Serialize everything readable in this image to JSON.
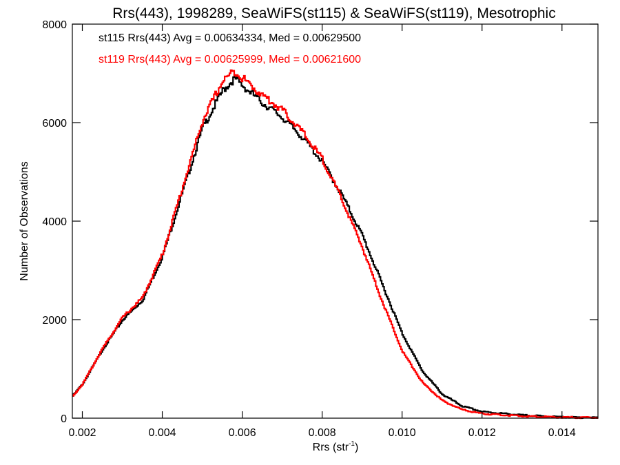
{
  "chart_data": {
    "type": "line",
    "style": "step-histogram",
    "title": "Rrs(443), 1998289, SeaWiFS(st115) & SeaWiFS(st119), Mesotrophic",
    "xlabel_base": "Rrs (str",
    "xlabel_sup": "-1",
    "xlabel_end": ")",
    "ylabel": "Number of Observations",
    "xlim": [
      0.00175,
      0.0149
    ],
    "ylim": [
      0,
      8000
    ],
    "xticks": [
      0.002,
      0.004,
      0.006,
      0.008,
      0.01,
      0.012,
      0.014
    ],
    "xtick_labels": [
      "0.002",
      "0.004",
      "0.006",
      "0.008",
      "0.010",
      "0.012",
      "0.014"
    ],
    "yticks": [
      0,
      2000,
      4000,
      6000,
      8000
    ],
    "ytick_labels": [
      "0",
      "2000",
      "4000",
      "6000",
      "8000"
    ],
    "legend": [
      {
        "text": "st115 Rrs(443) Avg = 0.00634334, Med = 0.00629500",
        "color": "#000000"
      },
      {
        "text": "st119 Rrs(443) Avg = 0.00625999, Med = 0.00621600",
        "color": "#ff0000"
      }
    ],
    "series": [
      {
        "name": "st115",
        "color": "#000000",
        "x": [
          0.00175,
          0.002,
          0.0025,
          0.003,
          0.0035,
          0.004,
          0.0045,
          0.005,
          0.0055,
          0.0058,
          0.006,
          0.0065,
          0.007,
          0.0075,
          0.008,
          0.0085,
          0.009,
          0.0095,
          0.01,
          0.0105,
          0.011,
          0.0115,
          0.012,
          0.013,
          0.014,
          0.0149
        ],
        "values": [
          450,
          700,
          1400,
          2000,
          2400,
          3300,
          4600,
          5900,
          6650,
          6900,
          6750,
          6400,
          6100,
          5700,
          5200,
          4500,
          3700,
          2700,
          1700,
          950,
          480,
          240,
          130,
          60,
          20,
          10
        ]
      },
      {
        "name": "st119",
        "color": "#ff0000",
        "x": [
          0.00175,
          0.002,
          0.0025,
          0.003,
          0.0035,
          0.004,
          0.0045,
          0.005,
          0.0055,
          0.0058,
          0.006,
          0.0065,
          0.007,
          0.0075,
          0.008,
          0.0085,
          0.009,
          0.0095,
          0.01,
          0.0105,
          0.011,
          0.0115,
          0.012,
          0.013,
          0.014,
          0.0149
        ],
        "values": [
          450,
          700,
          1420,
          2050,
          2450,
          3350,
          4700,
          6050,
          6850,
          7050,
          6900,
          6550,
          6250,
          5800,
          5250,
          4400,
          3450,
          2350,
          1350,
          720,
          350,
          170,
          90,
          40,
          15,
          10
        ]
      }
    ]
  }
}
